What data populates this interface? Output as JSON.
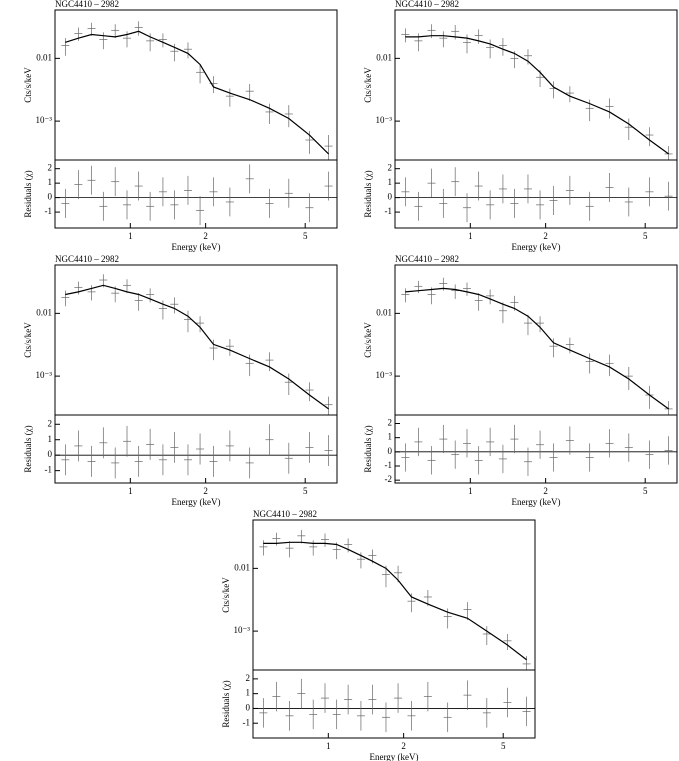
{
  "chart_data": [
    {
      "type": "spectrum",
      "title": "NGC4410 – 2982",
      "ylabel": "Cts/s/keV",
      "log_x": true,
      "log_y": true,
      "xlim": [
        0.5,
        6.7
      ],
      "ylim": [
        0.00024,
        0.059
      ],
      "yticks": [
        0.01,
        {
          "value": 0.001,
          "label": "10⁻³"
        }
      ],
      "x": [
        0.55,
        0.62,
        0.7,
        0.78,
        0.87,
        0.97,
        1.08,
        1.2,
        1.35,
        1.5,
        1.7,
        1.9,
        2.15,
        2.5,
        3.0,
        3.6,
        4.3,
        5.2,
        6.2
      ],
      "series": [
        {
          "color": "#666666",
          "values": [
            0.016,
            0.025,
            0.03,
            0.02,
            0.028,
            0.021,
            0.031,
            0.019,
            0.02,
            0.013,
            0.014,
            0.006,
            0.004,
            0.0025,
            0.003,
            0.0014,
            0.0013,
            0.0005,
            0.0004
          ],
          "errors": [
            0.005,
            0.006,
            0.007,
            0.006,
            0.007,
            0.006,
            0.008,
            0.006,
            0.005,
            0.004,
            0.004,
            0.002,
            0.0012,
            0.0008,
            0.0009,
            0.0005,
            0.0005,
            0.0002,
            0.0002
          ]
        }
      ],
      "model": {
        "color": "#000000",
        "values": [
          0.018,
          0.021,
          0.024,
          0.023,
          0.022,
          0.024,
          0.027,
          0.022,
          0.018,
          0.015,
          0.012,
          0.008,
          0.0035,
          0.0028,
          0.0022,
          0.0016,
          0.0011,
          0.0006,
          0.0003
        ]
      }
    },
    {
      "type": "residual",
      "ylabel": "Residuals (χ)",
      "xlabel": "Energy (keV)",
      "log_x": true,
      "xlim": [
        0.5,
        6.7
      ],
      "xticks": [
        1,
        2,
        5
      ],
      "ylim": [
        -2.1,
        2.6
      ],
      "yticks": [
        -1,
        0,
        1,
        2
      ],
      "x": [
        0.55,
        0.62,
        0.7,
        0.78,
        0.87,
        0.97,
        1.08,
        1.2,
        1.35,
        1.5,
        1.7,
        1.9,
        2.15,
        2.5,
        3.0,
        3.6,
        4.3,
        5.2,
        6.2
      ],
      "series": [
        {
          "color": "#666666",
          "values": [
            -0.4,
            0.9,
            1.2,
            -0.6,
            1.1,
            -0.5,
            0.8,
            -0.6,
            0.4,
            -0.5,
            0.5,
            -0.9,
            0.4,
            -0.3,
            1.3,
            -0.4,
            0.3,
            -0.7,
            0.8
          ],
          "errors": [
            1,
            1,
            1,
            1,
            1,
            1,
            1,
            1,
            1,
            1,
            1,
            1,
            1,
            1,
            1,
            1,
            1,
            1,
            1
          ]
        }
      ]
    },
    {
      "type": "spectrum",
      "title": "NGC4410 – 2982",
      "ylabel": "Cts/s/keV",
      "log_x": true,
      "log_y": true,
      "xlim": [
        0.5,
        6.7
      ],
      "ylim": [
        0.00024,
        0.059
      ],
      "yticks": [
        0.01,
        {
          "value": 0.001,
          "label": "10⁻³"
        }
      ],
      "x": [
        0.55,
        0.62,
        0.7,
        0.78,
        0.87,
        0.97,
        1.08,
        1.2,
        1.35,
        1.5,
        1.7,
        1.9,
        2.15,
        2.5,
        3.0,
        3.6,
        4.3,
        5.2,
        6.2
      ],
      "series": [
        {
          "color": "#666666",
          "values": [
            0.024,
            0.019,
            0.028,
            0.021,
            0.027,
            0.018,
            0.023,
            0.015,
            0.016,
            0.01,
            0.011,
            0.005,
            0.0033,
            0.0028,
            0.0016,
            0.0017,
            0.0008,
            0.0006,
            0.0003
          ],
          "errors": [
            0.006,
            0.006,
            0.007,
            0.006,
            0.007,
            0.006,
            0.006,
            0.005,
            0.005,
            0.003,
            0.003,
            0.0015,
            0.001,
            0.0008,
            0.0006,
            0.0006,
            0.0003,
            0.0002,
            0.0001
          ]
        }
      ],
      "model": {
        "color": "#000000",
        "values": [
          0.022,
          0.022,
          0.023,
          0.023,
          0.022,
          0.021,
          0.019,
          0.017,
          0.014,
          0.012,
          0.009,
          0.006,
          0.0035,
          0.0025,
          0.0019,
          0.0014,
          0.0009,
          0.0005,
          0.0003
        ]
      }
    },
    {
      "type": "residual",
      "ylabel": "Residuals (χ)",
      "xlabel": "Energy (keV)",
      "log_x": true,
      "xlim": [
        0.5,
        6.7
      ],
      "xticks": [
        1,
        2,
        5
      ],
      "ylim": [
        -2.1,
        2.6
      ],
      "yticks": [
        -1,
        0,
        1,
        2
      ],
      "x": [
        0.55,
        0.62,
        0.7,
        0.78,
        0.87,
        0.97,
        1.08,
        1.2,
        1.35,
        1.5,
        1.7,
        1.9,
        2.15,
        2.5,
        3.0,
        3.6,
        4.3,
        5.2,
        6.2
      ],
      "series": [
        {
          "color": "#666666",
          "values": [
            0.4,
            -0.6,
            1.0,
            -0.4,
            1.1,
            -0.7,
            0.8,
            -0.5,
            0.6,
            -0.4,
            0.6,
            -0.5,
            -0.2,
            0.5,
            -0.6,
            0.7,
            -0.3,
            0.4,
            0.1
          ],
          "errors": [
            1,
            1,
            1,
            1,
            1,
            1,
            1,
            1,
            1,
            1,
            1,
            1,
            1,
            1,
            1,
            1,
            1,
            1,
            1
          ]
        }
      ]
    },
    {
      "type": "spectrum",
      "title": "NGC4410 – 2982",
      "ylabel": "Cts/s/keV",
      "log_x": true,
      "log_y": true,
      "xlim": [
        0.5,
        6.7
      ],
      "ylim": [
        0.00024,
        0.059
      ],
      "yticks": [
        0.01,
        {
          "value": 0.001,
          "label": "10⁻³"
        }
      ],
      "x": [
        0.55,
        0.62,
        0.7,
        0.78,
        0.87,
        0.97,
        1.08,
        1.2,
        1.35,
        1.5,
        1.7,
        1.9,
        2.15,
        2.5,
        3.0,
        3.6,
        4.3,
        5.2,
        6.2
      ],
      "series": [
        {
          "color": "#666666",
          "values": [
            0.018,
            0.026,
            0.022,
            0.034,
            0.021,
            0.028,
            0.016,
            0.02,
            0.012,
            0.014,
            0.008,
            0.007,
            0.0028,
            0.003,
            0.0016,
            0.0018,
            0.0008,
            0.0006,
            0.00035
          ],
          "errors": [
            0.005,
            0.006,
            0.006,
            0.008,
            0.006,
            0.007,
            0.005,
            0.005,
            0.004,
            0.004,
            0.003,
            0.002,
            0.001,
            0.0009,
            0.0006,
            0.0006,
            0.0003,
            0.0002,
            0.00012
          ]
        }
      ],
      "model": {
        "color": "#000000",
        "values": [
          0.02,
          0.022,
          0.025,
          0.028,
          0.025,
          0.022,
          0.02,
          0.017,
          0.014,
          0.012,
          0.009,
          0.006,
          0.0032,
          0.0026,
          0.0019,
          0.0014,
          0.0009,
          0.0005,
          0.0003
        ]
      }
    },
    {
      "type": "residual",
      "ylabel": "Residuals (χ)",
      "xlabel": "Energy (keV)",
      "log_x": true,
      "xlim": [
        0.5,
        6.7
      ],
      "xticks": [
        1,
        2,
        5
      ],
      "ylim": [
        -1.8,
        2.6
      ],
      "yticks": [
        -1,
        0,
        1,
        2
      ],
      "x": [
        0.55,
        0.62,
        0.7,
        0.78,
        0.87,
        0.97,
        1.08,
        1.2,
        1.35,
        1.5,
        1.7,
        1.9,
        2.15,
        2.5,
        3.0,
        3.6,
        4.3,
        5.2,
        6.2
      ],
      "series": [
        {
          "color": "#666666",
          "values": [
            -0.3,
            0.6,
            -0.4,
            0.8,
            -0.5,
            0.9,
            -0.4,
            0.7,
            -0.3,
            0.5,
            -0.3,
            0.4,
            -0.4,
            0.6,
            -0.5,
            1.0,
            -0.2,
            0.5,
            0.3
          ],
          "errors": [
            1,
            1,
            1,
            1,
            1,
            1,
            1,
            1,
            1,
            1,
            1,
            1,
            1,
            1,
            1,
            1,
            1,
            1,
            1
          ]
        }
      ]
    },
    {
      "type": "spectrum",
      "title": "NGC4410 – 2982",
      "ylabel": "Cts/s/keV",
      "log_x": true,
      "log_y": true,
      "xlim": [
        0.5,
        6.7
      ],
      "ylim": [
        0.00024,
        0.059
      ],
      "yticks": [
        0.01,
        {
          "value": 0.001,
          "label": "10⁻³"
        }
      ],
      "x": [
        0.55,
        0.62,
        0.7,
        0.78,
        0.87,
        0.97,
        1.08,
        1.2,
        1.35,
        1.5,
        1.7,
        1.9,
        2.15,
        2.5,
        3.0,
        3.6,
        4.3,
        5.2,
        6.2
      ],
      "series": [
        {
          "color": "#666666",
          "values": [
            0.02,
            0.027,
            0.02,
            0.03,
            0.023,
            0.025,
            0.016,
            0.019,
            0.011,
            0.015,
            0.007,
            0.007,
            0.003,
            0.0032,
            0.0017,
            0.0016,
            0.001,
            0.0005,
            0.0003
          ],
          "errors": [
            0.005,
            0.006,
            0.006,
            0.007,
            0.006,
            0.006,
            0.005,
            0.005,
            0.004,
            0.004,
            0.0025,
            0.002,
            0.001,
            0.0009,
            0.0006,
            0.0006,
            0.0004,
            0.0002,
            0.0001
          ]
        }
      ],
      "model": {
        "color": "#000000",
        "values": [
          0.022,
          0.023,
          0.024,
          0.025,
          0.024,
          0.022,
          0.02,
          0.017,
          0.014,
          0.012,
          0.009,
          0.006,
          0.0034,
          0.0026,
          0.0019,
          0.0014,
          0.0009,
          0.0005,
          0.0003
        ]
      }
    },
    {
      "type": "residual",
      "ylabel": "Residuals (χ)",
      "xlabel": "Energy (keV)",
      "log_x": true,
      "xlim": [
        0.5,
        6.7
      ],
      "xticks": [
        1,
        2,
        5
      ],
      "ylim": [
        -2.2,
        2.6
      ],
      "yticks": [
        -2,
        -1,
        0,
        1,
        2
      ],
      "x": [
        0.55,
        0.62,
        0.7,
        0.78,
        0.87,
        0.97,
        1.08,
        1.2,
        1.35,
        1.5,
        1.7,
        1.9,
        2.15,
        2.5,
        3.0,
        3.6,
        4.3,
        5.2,
        6.2
      ],
      "series": [
        {
          "color": "#666666",
          "values": [
            -0.4,
            0.7,
            -0.6,
            0.9,
            -0.2,
            0.6,
            -0.6,
            0.7,
            -0.5,
            0.9,
            -0.7,
            0.5,
            -0.4,
            0.8,
            -0.4,
            0.6,
            0.3,
            -0.2,
            0.1
          ],
          "errors": [
            1,
            1,
            1,
            1,
            1,
            1,
            1,
            1,
            1,
            1,
            1,
            1,
            1,
            1,
            1,
            1,
            1,
            1,
            1
          ]
        }
      ]
    },
    {
      "type": "spectrum",
      "title": "NGC4410 – 2982",
      "ylabel": "Cts/s/keV",
      "log_x": true,
      "log_y": true,
      "xlim": [
        0.5,
        6.7
      ],
      "ylim": [
        0.00024,
        0.059
      ],
      "yticks": [
        0.01,
        {
          "value": 0.001,
          "label": "10⁻³"
        }
      ],
      "x": [
        0.55,
        0.62,
        0.7,
        0.78,
        0.87,
        0.97,
        1.08,
        1.2,
        1.35,
        1.5,
        1.7,
        1.9,
        2.15,
        2.5,
        3.0,
        3.6,
        4.3,
        5.2,
        6.2
      ],
      "series": [
        {
          "color": "#666666",
          "values": [
            0.022,
            0.03,
            0.021,
            0.033,
            0.022,
            0.029,
            0.02,
            0.024,
            0.014,
            0.016,
            0.008,
            0.0085,
            0.003,
            0.0035,
            0.0017,
            0.0022,
            0.0009,
            0.0007,
            0.0003
          ],
          "errors": [
            0.006,
            0.007,
            0.006,
            0.008,
            0.006,
            0.007,
            0.006,
            0.006,
            0.004,
            0.004,
            0.003,
            0.0025,
            0.001,
            0.001,
            0.0006,
            0.0007,
            0.0003,
            0.0002,
            0.0001
          ]
        }
      ],
      "model": {
        "color": "#000000",
        "values": [
          0.025,
          0.025,
          0.026,
          0.026,
          0.025,
          0.025,
          0.024,
          0.02,
          0.016,
          0.013,
          0.01,
          0.0065,
          0.0035,
          0.0027,
          0.002,
          0.0016,
          0.001,
          0.0006,
          0.00035
        ]
      }
    },
    {
      "type": "residual",
      "ylabel": "Residuals (χ)",
      "xlabel": "Energy (keV)",
      "log_x": true,
      "xlim": [
        0.5,
        6.7
      ],
      "xticks": [
        1,
        2,
        5
      ],
      "ylim": [
        -2.0,
        2.6
      ],
      "yticks": [
        -1,
        0,
        1,
        2
      ],
      "x": [
        0.55,
        0.62,
        0.7,
        0.78,
        0.87,
        0.97,
        1.08,
        1.2,
        1.35,
        1.5,
        1.7,
        1.9,
        2.15,
        2.5,
        3.0,
        3.6,
        4.3,
        5.2,
        6.2
      ],
      "series": [
        {
          "color": "#666666",
          "values": [
            -0.3,
            0.8,
            -0.5,
            1.0,
            -0.4,
            0.7,
            -0.4,
            0.6,
            -0.5,
            0.6,
            -0.6,
            0.7,
            -0.5,
            0.8,
            -0.6,
            0.9,
            -0.3,
            0.4,
            -0.2
          ],
          "errors": [
            1,
            1,
            1,
            1,
            1,
            1,
            1,
            1,
            1,
            1,
            1,
            1,
            1,
            1,
            1,
            1,
            1,
            1,
            1
          ]
        }
      ]
    }
  ]
}
